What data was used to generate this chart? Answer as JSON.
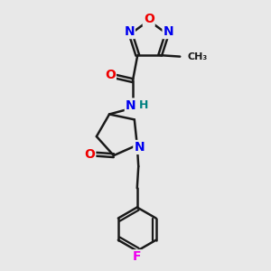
{
  "bg_color": "#e8e8e8",
  "bond_color": "#1a1a1a",
  "bond_width": 1.8,
  "atom_colors": {
    "N": "#0000ee",
    "O": "#ee0000",
    "F": "#ee00ee",
    "C": "#1a1a1a",
    "H": "#008080"
  },
  "font_size_atom": 10,
  "title": ""
}
